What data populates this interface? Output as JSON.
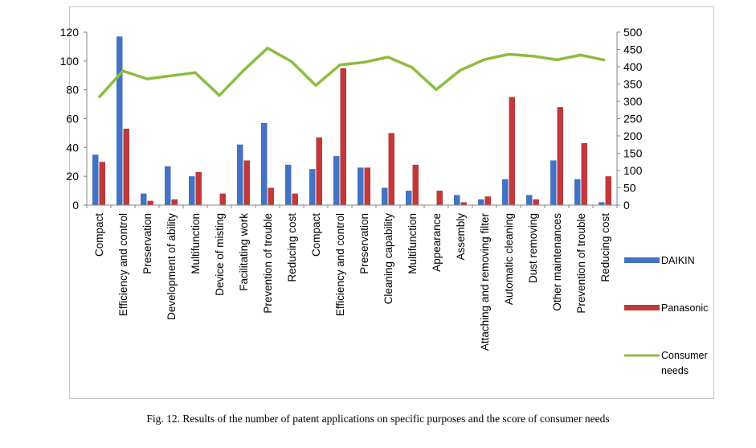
{
  "chart_data": {
    "type": "bar",
    "categories": [
      "Compact",
      "Efficiency and control",
      "Preservation",
      "Development of ability",
      "Multifunction",
      "Device of misting",
      "Facilitating work",
      "Prevention of trouble",
      "Reducing cost",
      "Compact",
      "Efficiency and control",
      "Preservation",
      "Cleaning capability",
      "Multifunction",
      "Appearance",
      "Assembly",
      "Attaching and removing filter",
      "Automatic cleaning",
      "Dust removing",
      "Other maintenances",
      "Prevention of trouble",
      "Reducing cost"
    ],
    "series": [
      {
        "name": "DAIKIN",
        "kind": "bar",
        "axis": "left",
        "color": "#4472c4",
        "values": [
          35,
          117,
          8,
          27,
          20,
          0,
          42,
          57,
          28,
          25,
          34,
          26,
          12,
          10,
          0,
          7,
          4,
          18,
          7,
          31,
          18,
          2
        ]
      },
      {
        "name": "Panasonic",
        "kind": "bar",
        "axis": "left",
        "color": "#c0393b",
        "values": [
          30,
          53,
          3,
          4,
          23,
          8,
          31,
          12,
          8,
          47,
          95,
          26,
          50,
          28,
          10,
          2,
          6,
          75,
          4,
          68,
          43,
          20
        ]
      },
      {
        "name": "Consumer needs",
        "kind": "line",
        "axis": "right",
        "color": "#8cbd3f",
        "values": [
          311,
          388,
          365,
          374,
          383,
          317,
          389,
          454,
          415,
          346,
          405,
          413,
          428,
          398,
          334,
          390,
          421,
          436,
          431,
          420,
          434,
          419
        ]
      }
    ],
    "y_left": {
      "ylim": [
        0,
        120
      ],
      "ticks": [
        0,
        20,
        40,
        60,
        80,
        100,
        120
      ]
    },
    "y_right": {
      "ylim": [
        0,
        500
      ],
      "ticks": [
        0,
        50,
        100,
        150,
        200,
        250,
        300,
        350,
        400,
        450,
        500
      ]
    },
    "legend": {
      "position": "right",
      "labels": [
        "DAIKIN",
        "Panasonic",
        "Consumer",
        "needs"
      ]
    },
    "grid": false,
    "caption": "Fig. 12. Results of the number of patent applications on specific purposes and the score of consumer needs"
  }
}
